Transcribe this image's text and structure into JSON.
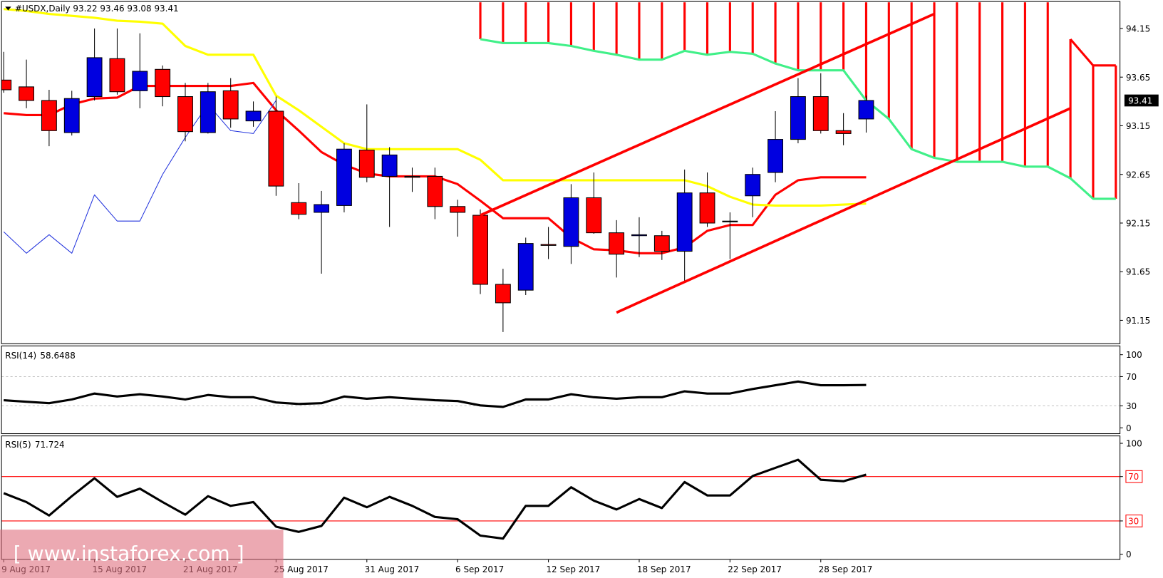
{
  "chart_data": [
    {
      "type": "candlestick",
      "title": "#USDX,Daily  93.22 93.46 93.08 93.41",
      "categories": [
        "9 Aug 2017",
        null,
        null,
        null,
        "15 Aug 2017",
        null,
        null,
        null,
        "21 Aug 2017",
        null,
        null,
        null,
        "25 Aug 2017",
        null,
        null,
        null,
        "31 Aug 2017",
        null,
        null,
        null,
        "6 Sep 2017",
        null,
        null,
        null,
        "12 Sep 2017",
        null,
        null,
        null,
        "18 Sep 2017",
        null,
        null,
        null,
        "22 Sep 2017",
        null,
        null,
        null,
        "28 Sep 2017",
        null,
        null,
        null,
        null,
        null,
        null,
        null,
        null,
        null,
        null,
        null,
        null,
        null
      ],
      "open": [
        93.62,
        93.55,
        93.41,
        93.08,
        93.45,
        93.84,
        93.51,
        93.73,
        93.45,
        93.08,
        93.51,
        93.2,
        93.3,
        92.36,
        92.26,
        92.33,
        92.9,
        92.63,
        92.63,
        92.63,
        92.32,
        92.23,
        91.52,
        91.46,
        91.93,
        91.91,
        92.41,
        92.05,
        92.02,
        92.02,
        91.86,
        92.46,
        92.17,
        92.43,
        92.67,
        93.01,
        93.45,
        93.1,
        93.22,
        null,
        null,
        null,
        null,
        null,
        null,
        null,
        null,
        null,
        null,
        null
      ],
      "high": [
        93.91,
        93.83,
        93.52,
        93.51,
        94.15,
        94.15,
        94.1,
        93.77,
        93.59,
        93.59,
        93.64,
        93.4,
        93.45,
        92.56,
        92.48,
        92.97,
        93.37,
        92.93,
        92.72,
        92.72,
        92.39,
        92.29,
        91.68,
        92.0,
        92.11,
        92.55,
        92.67,
        92.18,
        92.21,
        92.07,
        92.7,
        92.67,
        92.26,
        92.72,
        93.3,
        93.64,
        93.69,
        93.28,
        93.46,
        null,
        null,
        null,
        null,
        null,
        null,
        null,
        null,
        null,
        null,
        null
      ],
      "low": [
        93.49,
        93.33,
        92.94,
        93.05,
        93.41,
        93.47,
        93.33,
        93.35,
        92.99,
        93.07,
        93.13,
        93.14,
        92.43,
        92.19,
        91.63,
        92.26,
        92.57,
        92.11,
        92.47,
        92.19,
        92.01,
        91.42,
        91.03,
        91.41,
        91.78,
        91.73,
        92.04,
        91.59,
        91.8,
        91.77,
        91.54,
        92.11,
        91.78,
        92.21,
        92.57,
        92.97,
        93.07,
        92.95,
        93.08,
        null,
        null,
        null,
        null,
        null,
        null,
        null,
        null,
        null,
        null,
        null
      ],
      "close": [
        93.52,
        93.41,
        93.1,
        93.43,
        93.85,
        93.5,
        93.71,
        93.45,
        93.09,
        93.5,
        93.22,
        93.3,
        92.53,
        92.24,
        92.34,
        92.91,
        92.62,
        92.85,
        92.62,
        92.32,
        92.26,
        91.52,
        91.33,
        91.94,
        91.92,
        92.41,
        92.05,
        91.83,
        92.03,
        91.86,
        92.46,
        92.15,
        92.17,
        92.65,
        93.01,
        93.45,
        93.1,
        93.07,
        93.41,
        null,
        null,
        null,
        null,
        null,
        null,
        null,
        null,
        null,
        null,
        null
      ],
      "up_color": "#0000e0",
      "down_color": "#ff0000",
      "series": [
        {
          "color": "#ff0000",
          "values": [
            93.28,
            93.26,
            93.26,
            93.37,
            93.43,
            93.44,
            93.56,
            93.56,
            93.56,
            93.56,
            93.56,
            93.59,
            93.31,
            93.1,
            92.88,
            92.75,
            92.66,
            92.63,
            92.63,
            92.63,
            92.55,
            92.38,
            92.2,
            92.2,
            92.2,
            92.0,
            91.88,
            91.87,
            91.84,
            91.84,
            91.9,
            92.07,
            92.13,
            92.13,
            92.44,
            92.59,
            92.62,
            92.62,
            92.62,
            null,
            null,
            null,
            null,
            null,
            null,
            null,
            null,
            null,
            null,
            null
          ]
        },
        {
          "color": "#ffff00",
          "values": [
            94.35,
            94.33,
            94.3,
            94.28,
            94.26,
            94.23,
            94.22,
            94.2,
            93.97,
            93.88,
            93.88,
            93.88,
            93.46,
            93.31,
            93.14,
            92.97,
            92.91,
            92.91,
            92.91,
            92.91,
            92.91,
            92.8,
            92.59,
            92.59,
            92.59,
            92.59,
            92.59,
            92.59,
            92.59,
            92.59,
            92.59,
            92.53,
            92.42,
            92.34,
            92.33,
            92.33,
            92.33,
            92.34,
            92.35,
            null,
            null,
            null,
            null,
            null,
            null,
            null,
            null,
            null,
            null,
            null
          ]
        },
        {
          "color": "#2233dd",
          "values": [
            92.06,
            91.84,
            92.03,
            91.84,
            92.44,
            92.17,
            92.17,
            92.65,
            93.03,
            93.37,
            93.1,
            93.07,
            93.41,
            null,
            null,
            null,
            null,
            null,
            null,
            null,
            null,
            null,
            null,
            null,
            null,
            null,
            null,
            null,
            null,
            null,
            null,
            null,
            null,
            null,
            null,
            null,
            null,
            null,
            null,
            null,
            null,
            null,
            null,
            null,
            null,
            null,
            null,
            null,
            null,
            null
          ]
        },
        {
          "color": "#ff0000",
          "values": [
            null,
            null,
            null,
            null,
            null,
            null,
            null,
            null,
            null,
            null,
            null,
            null,
            null,
            null,
            null,
            null,
            null,
            null,
            null,
            null,
            null,
            null,
            null,
            null,
            null,
            null,
            null,
            null,
            null,
            null,
            null,
            null,
            null,
            null,
            null,
            null,
            null,
            null,
            null,
            null,
            null,
            null,
            null,
            null,
            null,
            null,
            null,
            94.04,
            93.77,
            93.77
          ]
        },
        {
          "color": "#40f088",
          "values": [
            null,
            null,
            null,
            null,
            null,
            null,
            null,
            null,
            null,
            null,
            null,
            null,
            null,
            null,
            null,
            null,
            null,
            null,
            null,
            null,
            null,
            94.04,
            94.0,
            94.0,
            94.0,
            93.97,
            93.92,
            93.88,
            93.83,
            93.83,
            93.92,
            93.88,
            93.91,
            93.89,
            93.79,
            93.72,
            93.72,
            93.72,
            93.41,
            93.22,
            92.91,
            92.82,
            92.78,
            92.78,
            92.78,
            92.73,
            92.73,
            92.61,
            92.4,
            92.4
          ]
        }
      ],
      "cloud": {
        "color": "#ff0000",
        "between": [
          3,
          4
        ]
      },
      "trendlines": [
        {
          "color": "#ff0000",
          "x": [
            21,
            41
          ],
          "y": [
            92.23,
            94.3
          ]
        },
        {
          "color": "#ff0000",
          "x": [
            27,
            47
          ],
          "y": [
            91.23,
            93.33
          ]
        }
      ],
      "ylim": [
        90.91,
        94.42
      ],
      "yticks": [
        91.15,
        91.65,
        92.15,
        92.65,
        93.15,
        93.65,
        94.15
      ]
    },
    {
      "type": "line",
      "title": "RSI(14)",
      "color": "#000000",
      "values": [
        37.8,
        35.7,
        33.7,
        38.8,
        46.9,
        42.9,
        45.9,
        42.9,
        38.8,
        44.9,
        41.8,
        41.8,
        34.7,
        32.7,
        33.7,
        42.9,
        39.8,
        41.8,
        39.8,
        37.8,
        36.7,
        30.6,
        28.6,
        38.8,
        38.8,
        45.9,
        41.8,
        39.8,
        41.8,
        41.8,
        50.0,
        46.9,
        46.9,
        53.1,
        58.2,
        63.3,
        58.2,
        58.2,
        58.6488,
        null,
        null,
        null,
        null,
        null,
        null,
        null,
        null,
        null,
        null,
        null
      ],
      "ylim": [
        -8,
        111
      ],
      "yticks": [
        0,
        30,
        70,
        100
      ],
      "levels": [
        30,
        70
      ],
      "level_color": "#c0c0c0",
      "level_dashed": true
    },
    {
      "type": "line",
      "title": "RSI(5)",
      "color": "#000000",
      "values": [
        55.0,
        47.0,
        34.9,
        52.3,
        68.5,
        51.7,
        59.1,
        47.0,
        35.6,
        52.3,
        43.6,
        47.0,
        24.8,
        20.1,
        25.5,
        51.0,
        42.3,
        51.7,
        43.6,
        33.6,
        31.5,
        16.8,
        14.1,
        43.6,
        43.6,
        60.4,
        48.3,
        40.3,
        49.7,
        41.6,
        65.1,
        53.0,
        53.0,
        70.5,
        77.9,
        85.2,
        67.1,
        65.8,
        71.724,
        null,
        null,
        null,
        null,
        null,
        null,
        null,
        null,
        null,
        null,
        null
      ],
      "ylim": [
        -4.7,
        106
      ],
      "yticks": [
        0,
        30,
        70,
        100
      ],
      "levels": [
        30,
        70
      ],
      "level_color": "#ff0000",
      "level_dashed": false
    }
  ],
  "watermark": "[ www.instaforex.com ]"
}
